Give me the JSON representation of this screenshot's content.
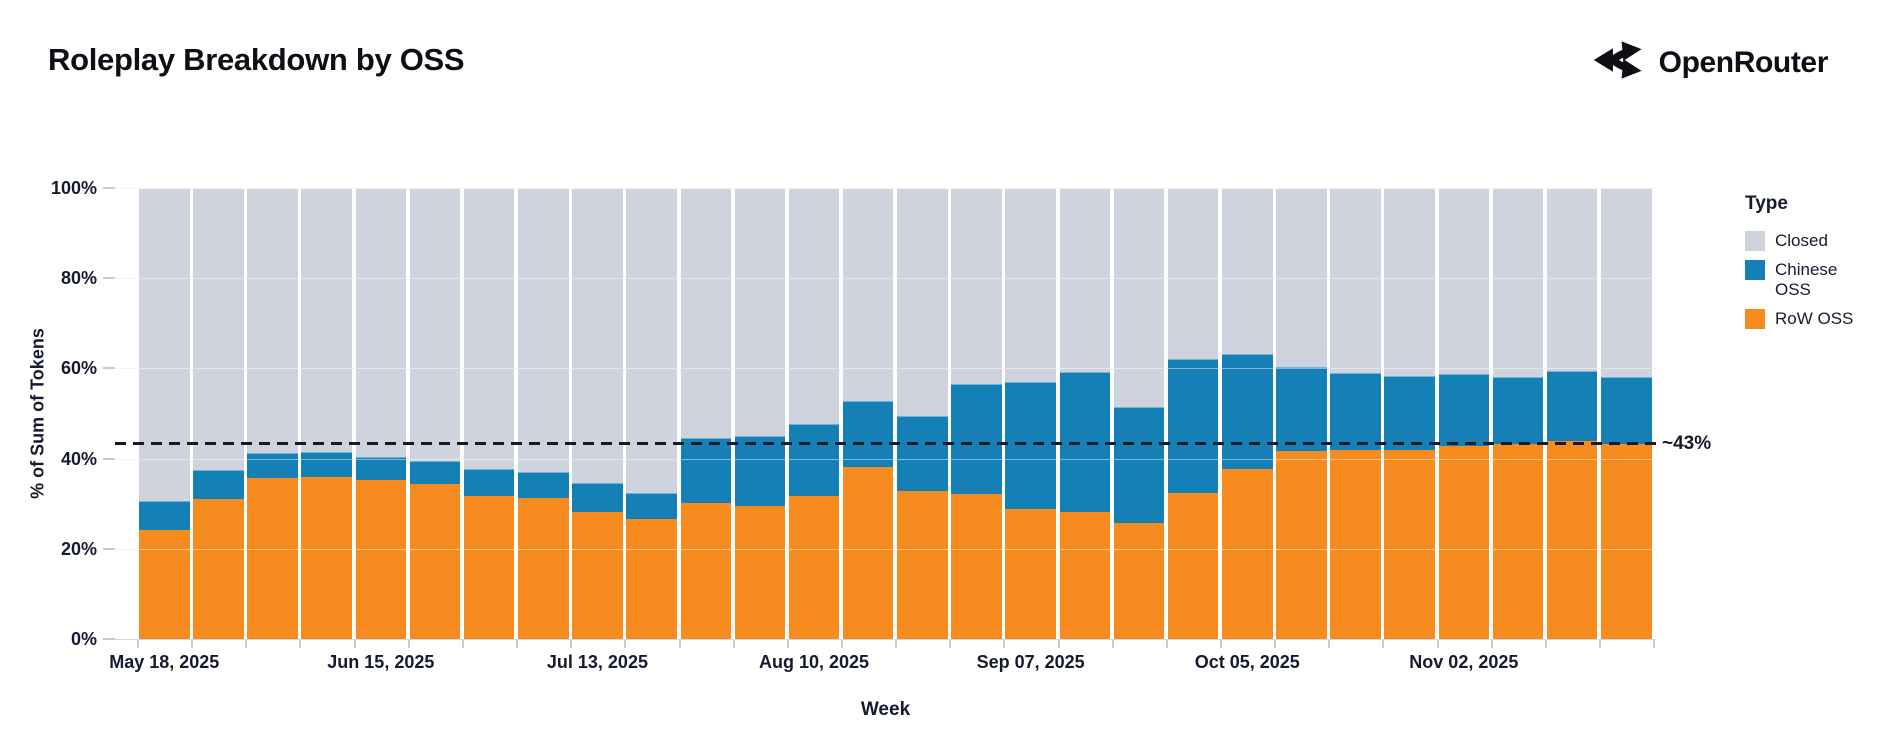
{
  "header": {
    "title": "Roleplay Breakdown by OSS",
    "logo_text": "OpenRouter"
  },
  "axes": {
    "y_title": "% of Sum of Tokens",
    "x_title": "Week",
    "y_ticks": [
      "0%",
      "20%",
      "40%",
      "60%",
      "80%",
      "100%"
    ],
    "x_tick_labels": [
      "May 18, 2025",
      "Jun 15, 2025",
      "Jul 13, 2025",
      "Aug 10, 2025",
      "Sep 07, 2025",
      "Oct 05, 2025",
      "Nov 02, 2025"
    ],
    "x_tick_label_indices": [
      0,
      4,
      8,
      12,
      16,
      20,
      24
    ]
  },
  "annotation": {
    "label": "~43%",
    "value": 43.3
  },
  "legend": {
    "title": "Type",
    "items": [
      {
        "name": "closed",
        "label": "Closed",
        "color": "#CED3DE"
      },
      {
        "name": "chinese-oss",
        "label": "Chinese OSS",
        "color": "#1480B5"
      },
      {
        "name": "row-oss",
        "label": "RoW OSS",
        "color": "#F68B1F"
      }
    ]
  },
  "colors": {
    "closed": "#CED3DE",
    "chinese_oss": "#1480B5",
    "row_oss": "#F68B1F",
    "dashed_line": "#16182B",
    "axis_text": "#161A30"
  },
  "chart_data": {
    "type": "bar",
    "stacked": true,
    "title": "Roleplay Breakdown by OSS",
    "xlabel": "Week",
    "ylabel": "% of Sum of Tokens",
    "ylim": [
      0,
      100
    ],
    "grid": true,
    "legend_position": "right",
    "reference_line": {
      "value": 43.3,
      "label": "~43%",
      "style": "dashed"
    },
    "categories": [
      "May 18, 2025",
      "May 25, 2025",
      "Jun 01, 2025",
      "Jun 08, 2025",
      "Jun 15, 2025",
      "Jun 22, 2025",
      "Jun 29, 2025",
      "Jul 06, 2025",
      "Jul 13, 2025",
      "Jul 20, 2025",
      "Jul 27, 2025",
      "Aug 03, 2025",
      "Aug 10, 2025",
      "Aug 17, 2025",
      "Aug 24, 2025",
      "Aug 31, 2025",
      "Sep 07, 2025",
      "Sep 14, 2025",
      "Sep 21, 2025",
      "Sep 28, 2025",
      "Oct 05, 2025",
      "Oct 12, 2025",
      "Oct 19, 2025",
      "Oct 26, 2025",
      "Nov 02, 2025",
      "Nov 09, 2025",
      "Nov 16, 2025",
      "Nov 23, 2025"
    ],
    "series": [
      {
        "name": "RoW OSS",
        "color": "#F68B1F",
        "values": [
          24.2,
          31.1,
          35.8,
          35.9,
          35.2,
          34.3,
          31.7,
          31.3,
          28.2,
          26.7,
          30.2,
          29.4,
          31.8,
          38.2,
          32.9,
          32.2,
          28.9,
          28.2,
          25.8,
          32.4,
          37.6,
          41.6,
          42.0,
          41.8,
          42.9,
          43.2,
          44.0,
          43.2
        ]
      },
      {
        "name": "Chinese OSS",
        "color": "#1480B5",
        "values": [
          6.5,
          6.3,
          5.4,
          5.5,
          5.1,
          5.1,
          5.9,
          5.7,
          6.5,
          5.7,
          14.4,
          15.6,
          15.9,
          14.6,
          16.6,
          24.3,
          28.1,
          31.0,
          25.7,
          29.6,
          25.7,
          18.8,
          16.9,
          16.5,
          15.8,
          15.0,
          15.4,
          14.8
        ]
      },
      {
        "name": "Closed",
        "color": "#CED3DE",
        "values": [
          69.3,
          62.6,
          58.8,
          58.6,
          59.7,
          60.6,
          62.4,
          63.0,
          65.3,
          67.6,
          55.4,
          55.0,
          52.3,
          47.2,
          50.5,
          43.5,
          43.0,
          40.8,
          48.5,
          38.0,
          36.7,
          39.6,
          41.1,
          41.7,
          41.3,
          41.8,
          40.6,
          42.0
        ]
      }
    ]
  }
}
